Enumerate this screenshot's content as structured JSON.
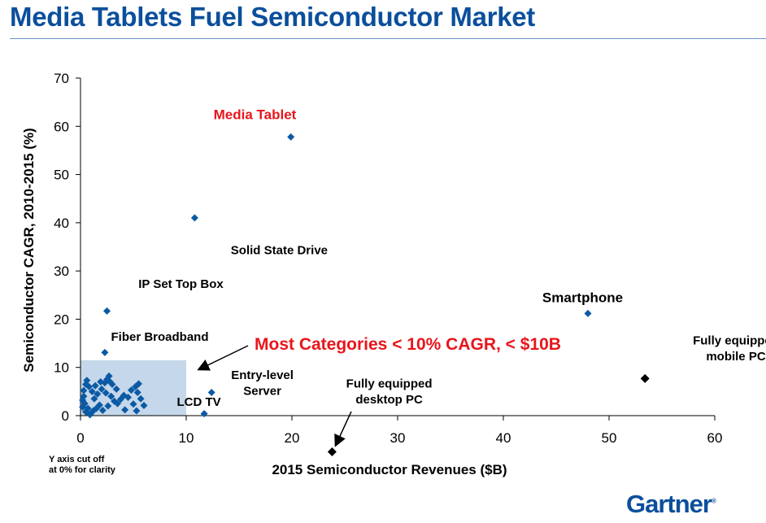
{
  "title": "Media Tablets Fuel Semiconductor Market",
  "logo": "Gartner",
  "chart_data": {
    "type": "scatter",
    "xlabel": "2015 Semiconductor Revenues ($B)",
    "ylabel": "Semiconductor CAGR, 2010-2015 (%)",
    "xlim": [
      0,
      60
    ],
    "ylim": [
      0,
      70
    ],
    "xticks": [
      0,
      10,
      20,
      30,
      40,
      50,
      60
    ],
    "yticks": [
      0,
      10,
      20,
      30,
      40,
      50,
      60,
      70
    ],
    "grid": false,
    "colors": {
      "points": "#0b5aa5",
      "highlight": "#000000",
      "callout": "#e8151b",
      "region": "#c5d7ea"
    },
    "highlight_region": {
      "x": [
        0,
        10
      ],
      "y": [
        0,
        11.5
      ]
    },
    "axis_note": "Y axis cut off at 0% for clarity",
    "axis_note_lines": [
      "Y axis cut off",
      "at 0% for clarity"
    ],
    "callout": "Most Categories < 10% CAGR, < $10B",
    "points": [
      {
        "x": 19.9,
        "y": 57.8
      },
      {
        "x": 10.8,
        "y": 41.0
      },
      {
        "x": 2.5,
        "y": 21.7
      },
      {
        "x": 2.3,
        "y": 13.1
      },
      {
        "x": 48.0,
        "y": 21.2
      },
      {
        "x": 12.4,
        "y": 4.8
      },
      {
        "x": 11.7,
        "y": 0.4
      },
      {
        "x": 0.3,
        "y": 4.0
      },
      {
        "x": 0.5,
        "y": 6.5
      },
      {
        "x": 0.6,
        "y": 7.3
      },
      {
        "x": 0.8,
        "y": 6.0
      },
      {
        "x": 0.4,
        "y": 2.5
      },
      {
        "x": 0.2,
        "y": 3.2
      },
      {
        "x": 0.7,
        "y": 1.5
      },
      {
        "x": 1.0,
        "y": 0.5
      },
      {
        "x": 1.2,
        "y": 1.0
      },
      {
        "x": 0.9,
        "y": 0.2
      },
      {
        "x": 1.5,
        "y": 1.5
      },
      {
        "x": 1.8,
        "y": 2.2
      },
      {
        "x": 1.3,
        "y": 3.5
      },
      {
        "x": 1.6,
        "y": 4.5
      },
      {
        "x": 1.1,
        "y": 5.0
      },
      {
        "x": 2.0,
        "y": 5.5
      },
      {
        "x": 2.3,
        "y": 6.8
      },
      {
        "x": 2.5,
        "y": 7.5
      },
      {
        "x": 2.7,
        "y": 8.2
      },
      {
        "x": 2.8,
        "y": 7.0
      },
      {
        "x": 3.0,
        "y": 6.5
      },
      {
        "x": 2.4,
        "y": 4.7
      },
      {
        "x": 2.9,
        "y": 4.0
      },
      {
        "x": 3.2,
        "y": 3.0
      },
      {
        "x": 2.6,
        "y": 2.0
      },
      {
        "x": 3.5,
        "y": 2.5
      },
      {
        "x": 3.8,
        "y": 3.4
      },
      {
        "x": 4.1,
        "y": 4.2
      },
      {
        "x": 4.5,
        "y": 3.8
      },
      {
        "x": 4.8,
        "y": 5.3
      },
      {
        "x": 5.2,
        "y": 6.0
      },
      {
        "x": 5.5,
        "y": 6.6
      },
      {
        "x": 5.4,
        "y": 4.8
      },
      {
        "x": 5.7,
        "y": 3.5
      },
      {
        "x": 5.0,
        "y": 2.4
      },
      {
        "x": 6.0,
        "y": 2.1
      },
      {
        "x": 5.3,
        "y": 1.0
      },
      {
        "x": 4.2,
        "y": 1.2
      },
      {
        "x": 3.4,
        "y": 5.5
      },
      {
        "x": 1.9,
        "y": 7.0
      },
      {
        "x": 0.5,
        "y": 0.8
      },
      {
        "x": 2.1,
        "y": 1.1
      },
      {
        "x": 0.3,
        "y": 5.2
      },
      {
        "x": 1.4,
        "y": 6.2
      },
      {
        "x": 0.2,
        "y": 1.8
      }
    ],
    "highlight_points": [
      {
        "x": 53.4,
        "y": 7.7
      },
      {
        "x": 23.8,
        "y": -7.5
      }
    ],
    "annotations": [
      {
        "text": "Media Tablet",
        "x": 16.5,
        "y": 61.5,
        "color": "#e8151b",
        "size": 17,
        "anchor": "middle"
      },
      {
        "text": "Solid State Drive",
        "x": 18.8,
        "y": 33.5,
        "color": "#000",
        "size": 15,
        "anchor": "middle"
      },
      {
        "text": "IP Set Top Box",
        "x": 9.5,
        "y": 26.5,
        "color": "#000",
        "size": 15,
        "anchor": "middle"
      },
      {
        "text": "Fiber Broadband",
        "x": 7.5,
        "y": 15.5,
        "color": "#000",
        "size": 15,
        "anchor": "middle"
      },
      {
        "text": "Smartphone",
        "x": 47.5,
        "y": 23.5,
        "color": "#000",
        "size": 17,
        "anchor": "middle"
      },
      {
        "text": "Entry-level",
        "x": 17.2,
        "y": 7.6,
        "color": "#000",
        "size": 15,
        "anchor": "middle"
      },
      {
        "text": "Server",
        "x": 17.2,
        "y": 4.3,
        "color": "#000",
        "size": 15,
        "anchor": "middle"
      },
      {
        "text": "LCD TV",
        "x": 11.2,
        "y": 2.0,
        "color": "#000",
        "size": 15,
        "anchor": "middle"
      },
      {
        "text": "Fully equipped",
        "x": 29.2,
        "y": 5.8,
        "color": "#000",
        "size": 15,
        "anchor": "middle"
      },
      {
        "text": "desktop PC",
        "x": 29.2,
        "y": 2.5,
        "color": "#000",
        "size": 15,
        "anchor": "middle"
      },
      {
        "text": "Fully equipped",
        "x": 62.0,
        "y": 14.8,
        "color": "#000",
        "size": 15,
        "anchor": "middle"
      },
      {
        "text": "mobile PC",
        "x": 62.0,
        "y": 11.5,
        "color": "#000",
        "size": 15,
        "anchor": "middle"
      }
    ]
  }
}
